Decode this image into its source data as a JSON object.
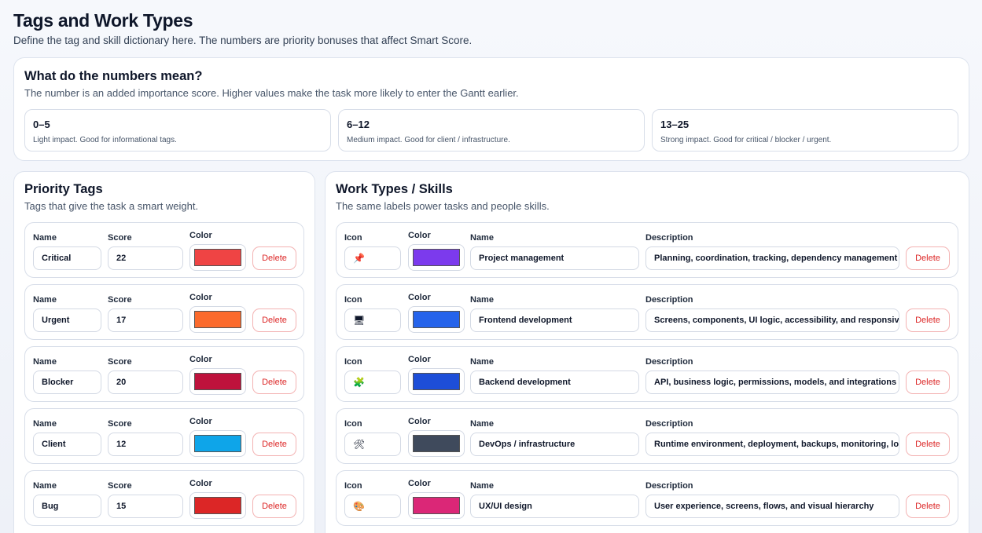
{
  "page": {
    "title": "Tags and Work Types",
    "subtitle": "Define the tag and skill dictionary here. The numbers are priority bonuses that affect Smart Score."
  },
  "info": {
    "title": "What do the numbers mean?",
    "subtitle": "The number is an added importance score. Higher values make the task more likely to enter the Gantt earlier.",
    "ranges": [
      {
        "range": "0–5",
        "text": "Light impact. Good for informational tags."
      },
      {
        "range": "6–12",
        "text": "Medium impact. Good for client / infrastructure."
      },
      {
        "range": "13–25",
        "text": "Strong impact. Good for critical / blocker / urgent."
      }
    ]
  },
  "tags": {
    "title": "Priority Tags",
    "subtitle": "Tags that give the task a smart weight.",
    "labels": {
      "name": "Name",
      "score": "Score",
      "color": "Color",
      "delete": "Delete"
    },
    "items": [
      {
        "name": "Critical",
        "score": "22",
        "color": "#ef4444"
      },
      {
        "name": "Urgent",
        "score": "17",
        "color": "#fb6a2c"
      },
      {
        "name": "Blocker",
        "score": "20",
        "color": "#be123c"
      },
      {
        "name": "Client",
        "score": "12",
        "color": "#0ea5e9"
      },
      {
        "name": "Bug",
        "score": "15",
        "color": "#dc2626"
      }
    ]
  },
  "work": {
    "title": "Work Types / Skills",
    "subtitle": "The same labels power tasks and people skills.",
    "labels": {
      "icon": "Icon",
      "color": "Color",
      "name": "Name",
      "description": "Description",
      "delete": "Delete"
    },
    "items": [
      {
        "icon": "📌",
        "icon_name": "pushpin-icon",
        "color": "#7c3aed",
        "name": "Project management",
        "description": "Planning, coordination, tracking, dependency management"
      },
      {
        "icon": "🖥",
        "icon_name": "desktop-computer-icon",
        "color": "#2563eb",
        "name": "Frontend development",
        "description": "Screens, components, UI logic, accessibility, and responsive"
      },
      {
        "icon": "🧩",
        "icon_name": "puzzle-piece-icon",
        "color": "#1d4ed8",
        "name": "Backend development",
        "description": "API, business logic, permissions, models, and integrations"
      },
      {
        "icon": "🛠",
        "icon_name": "hammer-wrench-icon",
        "color": "#3f4a5c",
        "name": "DevOps / infrastructure",
        "description": "Runtime environment, deployment, backups, monitoring, logs"
      },
      {
        "icon": "🎨",
        "icon_name": "palette-icon",
        "color": "#db2777",
        "name": "UX/UI design",
        "description": "User experience, screens, flows, and visual hierarchy"
      }
    ]
  }
}
